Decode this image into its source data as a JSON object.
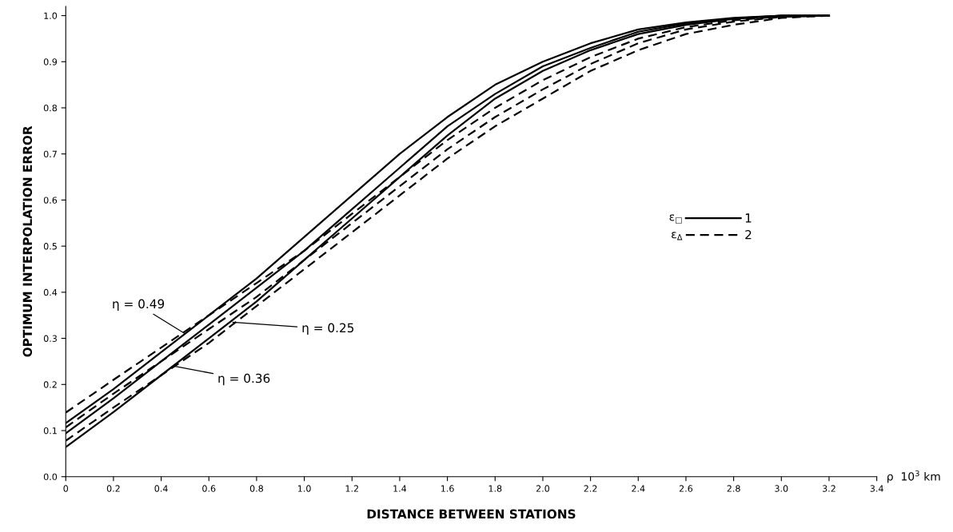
{
  "chart_data": {
    "type": "line",
    "xlabel": "DISTANCE BETWEEN STATIONS",
    "ylabel": "OPTIMUM INTERPOLATION ERROR",
    "x": [
      0,
      0.2,
      0.4,
      0.6,
      0.8,
      1.0,
      1.2,
      1.4,
      1.6,
      1.8,
      2.0,
      2.2,
      2.4,
      2.6,
      2.8,
      3.0,
      3.2
    ],
    "series": [
      {
        "name": "1",
        "color": "#000000",
        "line_style": "solid",
        "values": [
          0.116,
          0.19,
          0.27,
          0.35,
          0.43,
          0.52,
          0.61,
          0.7,
          0.78,
          0.85,
          0.9,
          0.94,
          0.97,
          0.985,
          0.995,
          1.0,
          1.0
        ]
      },
      {
        "color": "#000000",
        "line_style": "solid",
        "values": [
          0.094,
          0.17,
          0.25,
          0.33,
          0.41,
          0.49,
          0.58,
          0.67,
          0.76,
          0.83,
          0.89,
          0.93,
          0.965,
          0.983,
          0.994,
          1.0,
          1.0
        ]
      },
      {
        "color": "#000000",
        "line_style": "solid",
        "values": [
          0.064,
          0.14,
          0.22,
          0.3,
          0.38,
          0.47,
          0.56,
          0.65,
          0.74,
          0.82,
          0.88,
          0.925,
          0.96,
          0.98,
          0.993,
          1.0,
          1.0
        ]
      },
      {
        "name": "2",
        "color": "#000000",
        "line_style": "dashed",
        "values": [
          0.139,
          0.21,
          0.28,
          0.35,
          0.42,
          0.49,
          0.57,
          0.65,
          0.73,
          0.8,
          0.86,
          0.91,
          0.95,
          0.975,
          0.99,
          0.998,
          1.0
        ]
      },
      {
        "color": "#000000",
        "line_style": "dashed",
        "values": [
          0.107,
          0.18,
          0.25,
          0.32,
          0.39,
          0.47,
          0.55,
          0.63,
          0.71,
          0.78,
          0.84,
          0.895,
          0.94,
          0.97,
          0.987,
          0.997,
          1.0
        ]
      },
      {
        "color": "#000000",
        "line_style": "dashed",
        "values": [
          0.078,
          0.15,
          0.22,
          0.29,
          0.37,
          0.45,
          0.53,
          0.61,
          0.69,
          0.76,
          0.82,
          0.88,
          0.925,
          0.96,
          0.98,
          0.995,
          1.0
        ]
      }
    ],
    "xlim": [
      0,
      3.4
    ],
    "xticks": [
      0,
      0.2,
      0.4,
      0.6,
      0.8,
      {
        "value": 1.0,
        "label": "1.0"
      },
      1.2,
      1.4,
      1.6,
      1.8,
      {
        "value": 2.0,
        "label": "2.0"
      },
      2.2,
      2.4,
      2.6,
      2.8,
      {
        "value": 3.0,
        "label": "3.0"
      },
      3.2,
      3.4
    ],
    "ylim": [
      0,
      1.02
    ],
    "yticks": [
      {
        "value": 0.0,
        "label": "0.0"
      },
      0.1,
      0.2,
      0.3,
      0.4,
      0.5,
      0.6,
      0.7,
      0.8,
      0.9,
      {
        "value": 1.0,
        "label": "1.0"
      }
    ],
    "grid": false,
    "legend": "right",
    "annotations": [
      {
        "text": "η = 0.49",
        "x": 0.5,
        "y": 0.31
      },
      {
        "text": "η = 0.25",
        "x": 0.7,
        "y": 0.335
      },
      {
        "text": "η = 0.36",
        "x": 0.45,
        "y": 0.24
      },
      "ε$_{□}$",
      "ε$_{Δ}$",
      "ρ  10$^{3}$ km"
    ]
  }
}
